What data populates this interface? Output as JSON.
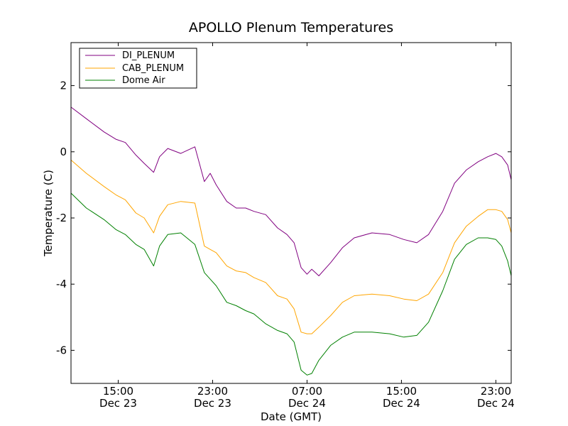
{
  "chart_data": {
    "type": "line",
    "title": "APOLLO Plenum Temperatures",
    "xlabel": "Date (GMT)",
    "ylabel": "Temperature (C)",
    "xlim_hours": [
      11.0,
      48.3
    ],
    "ylim": [
      -7.0,
      3.3
    ],
    "x_ticks": [
      {
        "hour": 15,
        "time": "15:00",
        "date": "Dec 23"
      },
      {
        "hour": 23,
        "time": "23:00",
        "date": "Dec 23"
      },
      {
        "hour": 31,
        "time": "07:00",
        "date": "Dec 24"
      },
      {
        "hour": 39,
        "time": "15:00",
        "date": "Dec 24"
      },
      {
        "hour": 47,
        "time": "23:00",
        "date": "Dec 24"
      }
    ],
    "y_ticks": [
      2,
      0,
      -2,
      -4,
      -6
    ],
    "legend_position": "top-left",
    "series": [
      {
        "name": "DI_PLENUM",
        "color": "#800080",
        "x": [
          11.0,
          12.3,
          13.8,
          14.8,
          15.6,
          16.5,
          17.2,
          18.0,
          18.5,
          19.2,
          20.3,
          21.5,
          22.3,
          22.8,
          23.3,
          24.2,
          25.0,
          25.8,
          26.5,
          27.5,
          28.5,
          29.3,
          29.9,
          30.5,
          31.0,
          31.4,
          32.0,
          33.0,
          34.0,
          35.0,
          36.5,
          38.0,
          39.2,
          40.3,
          41.3,
          42.5,
          43.5,
          44.5,
          45.5,
          46.3,
          47.0,
          47.5,
          48.0,
          48.3
        ],
        "values": [
          1.35,
          1.0,
          0.6,
          0.38,
          0.28,
          -0.1,
          -0.35,
          -0.62,
          -0.15,
          0.1,
          -0.05,
          0.15,
          -0.9,
          -0.65,
          -1.0,
          -1.5,
          -1.7,
          -1.7,
          -1.8,
          -1.9,
          -2.3,
          -2.5,
          -2.75,
          -3.5,
          -3.7,
          -3.55,
          -3.75,
          -3.35,
          -2.9,
          -2.6,
          -2.45,
          -2.5,
          -2.65,
          -2.75,
          -2.5,
          -1.8,
          -0.95,
          -0.55,
          -0.3,
          -0.15,
          -0.05,
          -0.15,
          -0.4,
          -0.85
        ]
      },
      {
        "name": "CAB_PLENUM",
        "color": "#FFA500",
        "x": [
          11.0,
          12.3,
          13.8,
          14.8,
          15.6,
          16.5,
          17.2,
          18.0,
          18.5,
          19.2,
          20.3,
          21.5,
          22.3,
          22.8,
          23.3,
          24.2,
          25.0,
          25.8,
          26.5,
          27.5,
          28.5,
          29.3,
          29.9,
          30.5,
          31.0,
          31.4,
          32.0,
          33.0,
          34.0,
          35.0,
          36.5,
          38.0,
          39.2,
          40.3,
          41.3,
          42.5,
          43.5,
          44.5,
          45.5,
          46.3,
          47.0,
          47.5,
          48.0,
          48.3
        ],
        "values": [
          -0.25,
          -0.65,
          -1.05,
          -1.3,
          -1.45,
          -1.85,
          -2.0,
          -2.45,
          -1.95,
          -1.6,
          -1.5,
          -1.55,
          -2.85,
          -2.95,
          -3.05,
          -3.45,
          -3.6,
          -3.65,
          -3.8,
          -3.95,
          -4.35,
          -4.45,
          -4.75,
          -5.45,
          -5.5,
          -5.5,
          -5.3,
          -4.95,
          -4.55,
          -4.35,
          -4.3,
          -4.35,
          -4.45,
          -4.5,
          -4.3,
          -3.65,
          -2.75,
          -2.25,
          -1.95,
          -1.75,
          -1.75,
          -1.8,
          -2.05,
          -2.45
        ]
      },
      {
        "name": "Dome Air",
        "color": "#008000",
        "x": [
          11.0,
          12.3,
          13.8,
          14.8,
          15.6,
          16.5,
          17.2,
          18.0,
          18.5,
          19.2,
          20.3,
          21.5,
          22.3,
          22.8,
          23.3,
          24.2,
          25.0,
          25.8,
          26.5,
          27.5,
          28.5,
          29.3,
          29.9,
          30.5,
          31.0,
          31.4,
          32.0,
          33.0,
          34.0,
          35.0,
          36.5,
          38.0,
          39.2,
          40.3,
          41.3,
          42.5,
          43.5,
          44.5,
          45.5,
          46.3,
          47.0,
          47.5,
          48.0,
          48.3
        ],
        "values": [
          -1.25,
          -1.7,
          -2.05,
          -2.35,
          -2.5,
          -2.8,
          -2.95,
          -3.45,
          -2.85,
          -2.5,
          -2.45,
          -2.8,
          -3.65,
          -3.85,
          -4.05,
          -4.55,
          -4.65,
          -4.8,
          -4.9,
          -5.2,
          -5.4,
          -5.5,
          -5.75,
          -6.6,
          -6.75,
          -6.7,
          -6.3,
          -5.85,
          -5.6,
          -5.45,
          -5.45,
          -5.5,
          -5.6,
          -5.55,
          -5.15,
          -4.2,
          -3.25,
          -2.8,
          -2.6,
          -2.6,
          -2.65,
          -2.85,
          -3.3,
          -3.75
        ]
      }
    ]
  }
}
